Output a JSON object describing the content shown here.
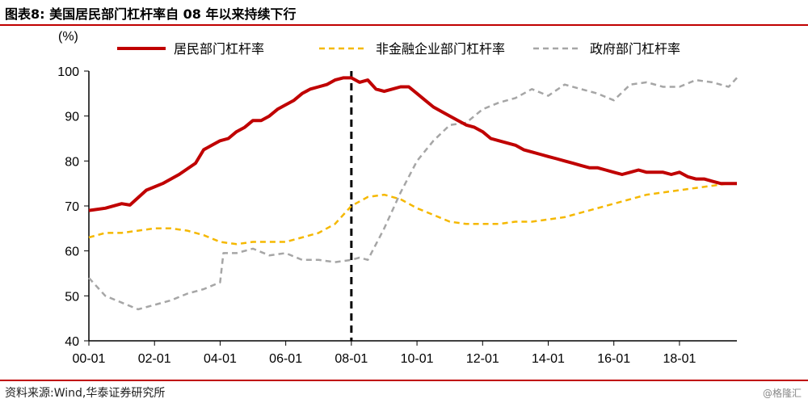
{
  "header": {
    "title": "图表8:   美国居民部门杠杆率自 08 年以来持续下行"
  },
  "footer": {
    "source": "资料来源:Wind,华泰证券研究所",
    "watermark": "@格隆汇"
  },
  "chart_data": {
    "type": "line",
    "title": "",
    "ylabel": "(%)",
    "xlabel": "",
    "ylim": [
      40,
      100
    ],
    "yticks": [
      "40",
      "50",
      "60",
      "70",
      "80",
      "90",
      "100"
    ],
    "xlim": [
      2000.0,
      2019.75
    ],
    "xticks": [
      {
        "label": "00-01",
        "x": 2000
      },
      {
        "label": "02-01",
        "x": 2002
      },
      {
        "label": "04-01",
        "x": 2004
      },
      {
        "label": "06-01",
        "x": 2006
      },
      {
        "label": "08-01",
        "x": 2008
      },
      {
        "label": "10-01",
        "x": 2010
      },
      {
        "label": "12-01",
        "x": 2012
      },
      {
        "label": "14-01",
        "x": 2014
      },
      {
        "label": "16-01",
        "x": 2016
      },
      {
        "label": "18-01",
        "x": 2018
      }
    ],
    "vline": {
      "x": 2008,
      "style": "dashed",
      "color": "#000000"
    },
    "legend_position": "top",
    "series": [
      {
        "name": "居民部门杠杆率",
        "color": "#C00000",
        "style": "solid",
        "points": [
          [
            2000.0,
            69.0
          ],
          [
            2000.5,
            69.5
          ],
          [
            2001.0,
            70.5
          ],
          [
            2001.25,
            70.2
          ],
          [
            2001.75,
            73.5
          ],
          [
            2002.25,
            75.0
          ],
          [
            2002.75,
            77.0
          ],
          [
            2003.25,
            79.5
          ],
          [
            2003.5,
            82.5
          ],
          [
            2003.75,
            83.5
          ],
          [
            2004.0,
            84.5
          ],
          [
            2004.25,
            85.0
          ],
          [
            2004.5,
            86.5
          ],
          [
            2004.75,
            87.5
          ],
          [
            2005.0,
            89.0
          ],
          [
            2005.25,
            89.0
          ],
          [
            2005.5,
            90.0
          ],
          [
            2005.75,
            91.5
          ],
          [
            2006.0,
            92.5
          ],
          [
            2006.25,
            93.5
          ],
          [
            2006.5,
            95.0
          ],
          [
            2006.75,
            96.0
          ],
          [
            2007.0,
            96.5
          ],
          [
            2007.25,
            97.0
          ],
          [
            2007.5,
            98.0
          ],
          [
            2007.75,
            98.5
          ],
          [
            2008.0,
            98.5
          ],
          [
            2008.25,
            97.5
          ],
          [
            2008.5,
            98.0
          ],
          [
            2008.75,
            96.0
          ],
          [
            2009.0,
            95.5
          ],
          [
            2009.25,
            96.0
          ],
          [
            2009.5,
            96.5
          ],
          [
            2009.75,
            96.5
          ],
          [
            2010.0,
            95.0
          ],
          [
            2010.25,
            93.5
          ],
          [
            2010.5,
            92.0
          ],
          [
            2010.75,
            91.0
          ],
          [
            2011.0,
            90.0
          ],
          [
            2011.25,
            89.0
          ],
          [
            2011.5,
            88.0
          ],
          [
            2011.75,
            87.5
          ],
          [
            2012.0,
            86.5
          ],
          [
            2012.25,
            85.0
          ],
          [
            2012.5,
            84.5
          ],
          [
            2012.75,
            84.0
          ],
          [
            2013.0,
            83.5
          ],
          [
            2013.25,
            82.5
          ],
          [
            2013.5,
            82.0
          ],
          [
            2013.75,
            81.5
          ],
          [
            2014.0,
            81.0
          ],
          [
            2014.25,
            80.5
          ],
          [
            2014.5,
            80.0
          ],
          [
            2014.75,
            79.5
          ],
          [
            2015.0,
            79.0
          ],
          [
            2015.25,
            78.5
          ],
          [
            2015.5,
            78.5
          ],
          [
            2015.75,
            78.0
          ],
          [
            2016.0,
            77.5
          ],
          [
            2016.25,
            77.0
          ],
          [
            2016.5,
            77.5
          ],
          [
            2016.75,
            78.0
          ],
          [
            2017.0,
            77.5
          ],
          [
            2017.25,
            77.5
          ],
          [
            2017.5,
            77.5
          ],
          [
            2017.75,
            77.0
          ],
          [
            2018.0,
            77.5
          ],
          [
            2018.25,
            76.5
          ],
          [
            2018.5,
            76.0
          ],
          [
            2018.75,
            76.0
          ],
          [
            2019.0,
            75.5
          ],
          [
            2019.25,
            75.0
          ],
          [
            2019.5,
            75.0
          ],
          [
            2019.75,
            75.0
          ]
        ]
      },
      {
        "name": "非金融企业部门杠杆率",
        "color": "#F5B800",
        "style": "dashed",
        "points": [
          [
            2000.0,
            63.0
          ],
          [
            2000.5,
            64.0
          ],
          [
            2001.0,
            64.0
          ],
          [
            2001.5,
            64.5
          ],
          [
            2002.0,
            65.0
          ],
          [
            2002.5,
            65.0
          ],
          [
            2003.0,
            64.5
          ],
          [
            2003.5,
            63.5
          ],
          [
            2004.0,
            62.0
          ],
          [
            2004.5,
            61.5
          ],
          [
            2005.0,
            62.0
          ],
          [
            2005.5,
            62.0
          ],
          [
            2006.0,
            62.0
          ],
          [
            2006.5,
            63.0
          ],
          [
            2007.0,
            64.0
          ],
          [
            2007.5,
            66.0
          ],
          [
            2008.0,
            70.0
          ],
          [
            2008.5,
            72.0
          ],
          [
            2009.0,
            72.5
          ],
          [
            2009.5,
            71.5
          ],
          [
            2010.0,
            69.5
          ],
          [
            2010.5,
            68.0
          ],
          [
            2011.0,
            66.5
          ],
          [
            2011.5,
            66.0
          ],
          [
            2012.0,
            66.0
          ],
          [
            2012.5,
            66.0
          ],
          [
            2013.0,
            66.5
          ],
          [
            2013.5,
            66.5
          ],
          [
            2014.0,
            67.0
          ],
          [
            2014.5,
            67.5
          ],
          [
            2015.0,
            68.5
          ],
          [
            2015.5,
            69.5
          ],
          [
            2016.0,
            70.5
          ],
          [
            2016.5,
            71.5
          ],
          [
            2017.0,
            72.5
          ],
          [
            2017.5,
            73.0
          ],
          [
            2018.0,
            73.5
          ],
          [
            2018.5,
            74.0
          ],
          [
            2019.0,
            74.5
          ],
          [
            2019.5,
            75.0
          ],
          [
            2019.75,
            75.0
          ]
        ]
      },
      {
        "name": "政府部门杠杆率",
        "color": "#A6A6A6",
        "style": "dashed",
        "points": [
          [
            2000.0,
            54.0
          ],
          [
            2000.5,
            50.0
          ],
          [
            2001.0,
            48.5
          ],
          [
            2001.5,
            47.0
          ],
          [
            2002.0,
            48.0
          ],
          [
            2002.5,
            49.0
          ],
          [
            2003.0,
            50.5
          ],
          [
            2003.5,
            51.5
          ],
          [
            2004.0,
            53.0
          ],
          [
            2004.1,
            59.5
          ],
          [
            2004.5,
            59.5
          ],
          [
            2005.0,
            60.5
          ],
          [
            2005.5,
            59.0
          ],
          [
            2006.0,
            59.5
          ],
          [
            2006.5,
            58.0
          ],
          [
            2007.0,
            58.0
          ],
          [
            2007.5,
            57.5
          ],
          [
            2008.0,
            58.0
          ],
          [
            2008.25,
            58.5
          ],
          [
            2008.5,
            58.0
          ],
          [
            2009.0,
            65.0
          ],
          [
            2009.5,
            73.0
          ],
          [
            2010.0,
            80.0
          ],
          [
            2010.5,
            84.5
          ],
          [
            2011.0,
            88.0
          ],
          [
            2011.5,
            88.5
          ],
          [
            2012.0,
            91.5
          ],
          [
            2012.5,
            93.0
          ],
          [
            2013.0,
            94.0
          ],
          [
            2013.5,
            96.0
          ],
          [
            2014.0,
            94.5
          ],
          [
            2014.5,
            97.0
          ],
          [
            2015.0,
            96.0
          ],
          [
            2015.5,
            95.0
          ],
          [
            2016.0,
            93.5
          ],
          [
            2016.5,
            97.0
          ],
          [
            2017.0,
            97.5
          ],
          [
            2017.5,
            96.5
          ],
          [
            2018.0,
            96.5
          ],
          [
            2018.5,
            98.0
          ],
          [
            2019.0,
            97.5
          ],
          [
            2019.5,
            96.5
          ],
          [
            2019.75,
            98.5
          ]
        ]
      }
    ]
  }
}
